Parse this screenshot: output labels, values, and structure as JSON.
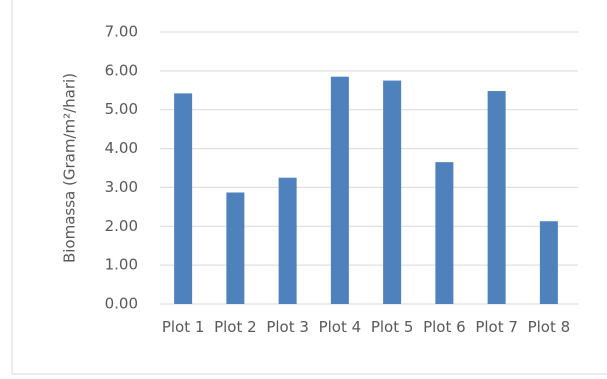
{
  "chart_data": {
    "type": "bar",
    "y_label": "Biomassa (Gram/m²/hari)",
    "categories": [
      "Plot 1",
      "Plot 2",
      "Plot 3",
      "Plot 4",
      "Plot 5",
      "Plot 6",
      "Plot 7",
      "Plot 8"
    ],
    "values": [
      5.42,
      2.87,
      3.25,
      5.85,
      5.75,
      3.65,
      5.48,
      2.13
    ],
    "color": "#4f81bd",
    "ylim": [
      0,
      7
    ],
    "yticks": [
      {
        "value": 0,
        "label": "0.00"
      },
      {
        "value": 1,
        "label": "1.00"
      },
      {
        "value": 2,
        "label": "2.00"
      },
      {
        "value": 3,
        "label": "3.00"
      },
      {
        "value": 4,
        "label": "4.00"
      },
      {
        "value": 5,
        "label": "5.00"
      },
      {
        "value": 6,
        "label": "6.00"
      },
      {
        "value": 7,
        "label": "7.00"
      }
    ],
    "grid": true
  }
}
